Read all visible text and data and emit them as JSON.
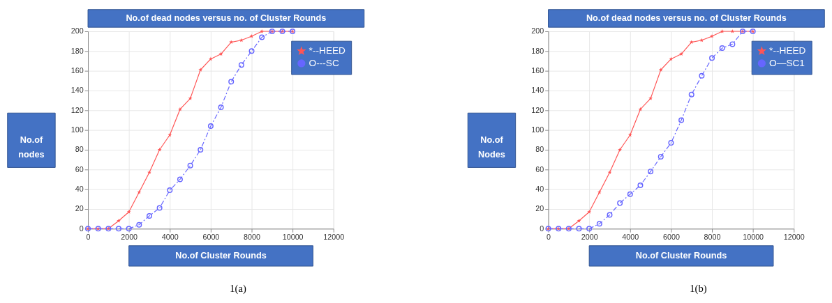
{
  "chart_data": [
    {
      "type": "line",
      "title": "No.of dead nodes versus no. of Cluster Rounds",
      "xlabel": "No.of Cluster Rounds",
      "ylabel": "No.of nodes",
      "x": [
        0,
        500,
        1000,
        1500,
        2000,
        2500,
        3000,
        3500,
        4000,
        4500,
        5000,
        5500,
        6000,
        6500,
        7000,
        7500,
        8000,
        8500,
        9000,
        9500,
        10000
      ],
      "series": [
        {
          "name": "*--HEED",
          "color": "#ff5555",
          "marker": "star",
          "line_style": "solid",
          "values": [
            0,
            0,
            0,
            8,
            17,
            37,
            57,
            80,
            95,
            121,
            132,
            161,
            172,
            177,
            189,
            191,
            195,
            200,
            200,
            200,
            200
          ]
        },
        {
          "name": "O---SC",
          "color": "#6666ff",
          "marker": "circle",
          "line_style": "dashed",
          "values": [
            0,
            0,
            0,
            0,
            0,
            4,
            13,
            21,
            39,
            50,
            64,
            80,
            104,
            123,
            149,
            166,
            180,
            194,
            200,
            200,
            200
          ]
        }
      ],
      "xlim": [
        0,
        12000
      ],
      "xticks": [
        0,
        2000,
        4000,
        6000,
        8000,
        10000,
        12000
      ],
      "ylim": [
        0,
        200
      ],
      "yticks": [
        0,
        20,
        40,
        60,
        80,
        100,
        120,
        140,
        160,
        180,
        200
      ],
      "grid": true,
      "legend": "top right",
      "annotations": [
        "1(a)"
      ]
    },
    {
      "type": "line",
      "title": "No.of dead nodes versus no. of Cluster Rounds",
      "xlabel": "No.of Cluster Rounds",
      "ylabel": "No.of Nodes",
      "x": [
        0,
        500,
        1000,
        1500,
        2000,
        2500,
        3000,
        3500,
        4000,
        4500,
        5000,
        5500,
        6000,
        6500,
        7000,
        7500,
        8000,
        8500,
        9000,
        9500,
        10000
      ],
      "series": [
        {
          "name": "*--HEED",
          "color": "#ff5555",
          "marker": "star",
          "line_style": "solid",
          "values": [
            0,
            0,
            0,
            8,
            17,
            37,
            57,
            80,
            95,
            121,
            132,
            161,
            172,
            177,
            189,
            191,
            195,
            200,
            200,
            200,
            200
          ]
        },
        {
          "name": "O—SC1",
          "color": "#6666ff",
          "marker": "circle",
          "line_style": "dashed",
          "values": [
            0,
            0,
            0,
            0,
            0,
            5,
            14,
            26,
            35,
            44,
            58,
            73,
            87,
            110,
            136,
            155,
            173,
            183,
            187,
            200,
            200
          ]
        }
      ],
      "xlim": [
        0,
        12000
      ],
      "xticks": [
        0,
        2000,
        4000,
        6000,
        8000,
        10000,
        12000
      ],
      "ylim": [
        0,
        200
      ],
      "yticks": [
        0,
        20,
        40,
        60,
        80,
        100,
        120,
        140,
        160,
        180,
        200
      ],
      "grid": true,
      "legend": "top right",
      "annotations": [
        "1(b)"
      ]
    }
  ]
}
